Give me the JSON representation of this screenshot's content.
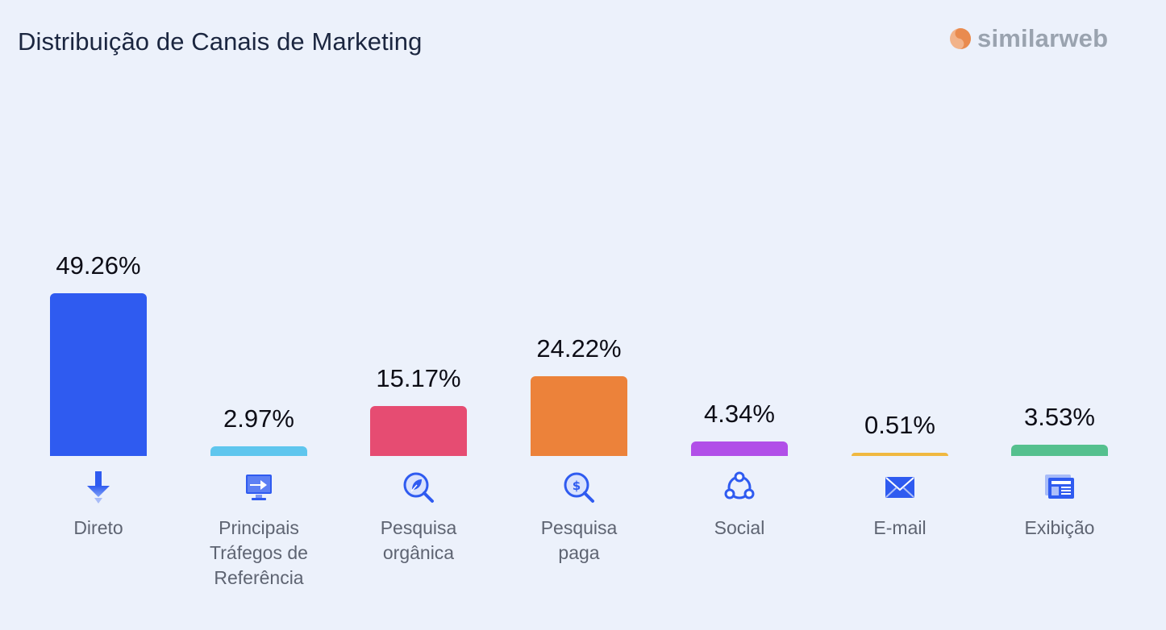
{
  "title": "Distribuição de Canais de Marketing",
  "logo": {
    "text": "similarweb",
    "icon": "similarweb-logo-icon"
  },
  "chart_data": {
    "type": "bar",
    "title": "Distribuição de Canais de Marketing",
    "categories": [
      "Direto",
      "Principais Tráfegos de Referência",
      "Pesquisa orgânica",
      "Pesquisa paga",
      "Social",
      "E-mail",
      "Exibição"
    ],
    "values": [
      49.26,
      2.97,
      15.17,
      24.22,
      4.34,
      0.51,
      3.53
    ],
    "value_labels": [
      "49.26%",
      "2.97%",
      "15.17%",
      "24.22%",
      "4.34%",
      "0.51%",
      "3.53%"
    ],
    "colors": [
      "#2f5bf0",
      "#5fc6ee",
      "#e64c72",
      "#ec823a",
      "#b14fe8",
      "#f0b840",
      "#55c08e"
    ],
    "icons": [
      "arrow-down-icon",
      "referral-monitor-icon",
      "organic-search-icon",
      "paid-search-icon",
      "social-network-icon",
      "mail-icon",
      "display-ad-icon"
    ],
    "ylim": [
      0,
      49.26
    ],
    "grid": false,
    "legend": "none",
    "xlabel": "",
    "ylabel": ""
  }
}
